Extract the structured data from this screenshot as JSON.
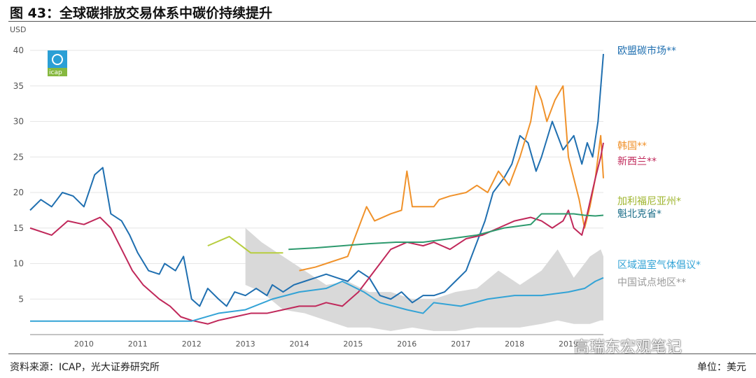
{
  "figure": {
    "title": "图 43：全球碳排放交易体系中碳价持续提升",
    "source": "资料来源：ICAP，光大证券研究所",
    "unit": "单位：美元",
    "watermark": "高瑞东宏观笔记",
    "logo_text": "icap"
  },
  "chart_data": {
    "type": "line",
    "ylabel": "USD",
    "ylim": [
      0,
      40
    ],
    "yticks": [
      5,
      10,
      15,
      20,
      25,
      30,
      35,
      40
    ],
    "xlim": [
      2009.5,
      2020.15
    ],
    "xticks": [
      2010,
      2011,
      2012,
      2013,
      2014,
      2015,
      2016,
      2017,
      2018,
      2019
    ],
    "grid": true,
    "legend": "right, inline labels",
    "series": [
      {
        "name": "欧盟碳市场**",
        "color": "#1f6fb0",
        "x": [
          2009.5,
          2009.7,
          2009.9,
          2010.1,
          2010.3,
          2010.5,
          2010.7,
          2010.85,
          2011.0,
          2011.2,
          2011.35,
          2011.5,
          2011.7,
          2011.9,
          2012.0,
          2012.2,
          2012.35,
          2012.5,
          2012.65,
          2012.8,
          2013.0,
          2013.15,
          2013.3,
          2013.5,
          2013.7,
          2013.9,
          2014.0,
          2014.2,
          2014.4,
          2014.6,
          2014.8,
          2015.0,
          2015.2,
          2015.4,
          2015.6,
          2015.8,
          2016.0,
          2016.2,
          2016.4,
          2016.6,
          2016.8,
          2017.0,
          2017.2,
          2017.4,
          2017.6,
          2017.8,
          2017.95,
          2018.1,
          2018.3,
          2018.45,
          2018.6,
          2018.75,
          2018.9,
          2019.0,
          2019.2,
          2019.4,
          2019.6,
          2019.75,
          2019.85,
          2019.95,
          2020.05,
          2020.15
        ],
        "values": [
          17.5,
          19.0,
          18.0,
          20.0,
          19.5,
          18.0,
          22.5,
          23.5,
          17.0,
          16.0,
          14.0,
          11.5,
          9.0,
          8.5,
          10.0,
          9.0,
          11.0,
          5.0,
          4.0,
          6.5,
          5.0,
          4.0,
          6.0,
          5.5,
          6.5,
          5.5,
          7.0,
          6.0,
          7.0,
          7.5,
          8.0,
          8.5,
          8.0,
          7.5,
          9.0,
          8.0,
          5.5,
          5.0,
          6.0,
          4.5,
          5.5,
          5.5,
          6.0,
          7.5,
          9.0,
          13.0,
          16.0,
          20.0,
          22.0,
          24.0,
          28.0,
          27.0,
          23.0,
          25.0,
          30.0,
          26.0,
          28.0,
          24.0,
          27.0,
          25.0,
          30.0,
          39.5
        ]
      },
      {
        "name": "韩国**",
        "color": "#f0922b",
        "x": [
          2014.5,
          2014.8,
          2015.0,
          2015.4,
          2015.6,
          2015.75,
          2015.9,
          2016.2,
          2016.4,
          2016.5,
          2016.6,
          2016.8,
          2017.0,
          2017.1,
          2017.3,
          2017.6,
          2017.8,
          2018.0,
          2018.2,
          2018.4,
          2018.6,
          2018.8,
          2018.9,
          2019.0,
          2019.1,
          2019.25,
          2019.4,
          2019.5,
          2019.6,
          2019.7,
          2019.8,
          2019.9,
          2020.0,
          2020.1,
          2020.15
        ],
        "values": [
          9.0,
          9.5,
          10.0,
          11.0,
          15.0,
          18.0,
          16.0,
          17.0,
          17.5,
          23.0,
          18.0,
          18.0,
          18.0,
          19.0,
          19.5,
          20.0,
          21.0,
          20.0,
          23.0,
          21.0,
          25.0,
          30.0,
          35.0,
          33.0,
          30.0,
          33.0,
          35.0,
          25.0,
          22.0,
          19.0,
          15.0,
          18.0,
          22.0,
          28.0,
          22.0
        ]
      },
      {
        "name": "新西兰**",
        "color": "#c0285a",
        "x": [
          2009.5,
          2009.9,
          2010.2,
          2010.5,
          2010.8,
          2011.0,
          2011.2,
          2011.4,
          2011.6,
          2011.9,
          2012.1,
          2012.3,
          2012.5,
          2012.8,
          2013.0,
          2013.3,
          2013.6,
          2013.9,
          2014.2,
          2014.5,
          2014.8,
          2015.0,
          2015.3,
          2015.6,
          2015.9,
          2016.2,
          2016.5,
          2016.8,
          2017.0,
          2017.3,
          2017.6,
          2017.9,
          2018.2,
          2018.5,
          2018.8,
          2019.0,
          2019.2,
          2019.4,
          2019.5,
          2019.6,
          2019.75,
          2019.85,
          2020.0,
          2020.1,
          2020.15
        ],
        "values": [
          15.0,
          14.0,
          16.0,
          15.5,
          16.5,
          15.0,
          12.0,
          9.0,
          7.0,
          5.0,
          4.0,
          2.5,
          2.0,
          1.5,
          2.0,
          2.5,
          3.0,
          3.0,
          3.5,
          4.0,
          4.0,
          4.5,
          4.0,
          6.0,
          9.0,
          12.0,
          13.0,
          12.5,
          13.0,
          12.0,
          13.5,
          14.0,
          15.0,
          16.0,
          16.5,
          16.0,
          15.0,
          16.0,
          17.5,
          15.0,
          14.0,
          17.0,
          22.0,
          25.0,
          27.0
        ]
      },
      {
        "name": "加利福尼亚州*",
        "color": "#b7cd3f",
        "x": [
          2012.8,
          2013.2,
          2013.6,
          2014.0,
          2014.2
        ],
        "values": [
          12.5,
          13.8,
          11.5,
          11.5,
          11.5
        ]
      },
      {
        "name": "魁北克省*",
        "color": "#2e9a6e",
        "x": [
          2014.3,
          2014.8,
          2015.3,
          2015.8,
          2016.3,
          2016.8,
          2017.3,
          2017.8,
          2018.3,
          2018.8,
          2019.0,
          2019.2,
          2019.4,
          2019.6,
          2019.8,
          2020.0,
          2020.15
        ],
        "values": [
          12.0,
          12.2,
          12.5,
          12.8,
          13.0,
          13.0,
          13.5,
          14.0,
          15.0,
          15.5,
          17.0,
          17.0,
          17.0,
          17.0,
          16.8,
          16.7,
          16.8
        ]
      },
      {
        "name": "区域温室气体倡议*",
        "color": "#33a3d6",
        "x": [
          2009.5,
          2010.0,
          2011.0,
          2012.0,
          2012.5,
          2013.0,
          2013.5,
          2014.0,
          2014.5,
          2015.0,
          2015.3,
          2015.7,
          2016.0,
          2016.5,
          2016.8,
          2017.0,
          2017.5,
          2018.0,
          2018.5,
          2019.0,
          2019.5,
          2019.8,
          2020.0,
          2020.15
        ],
        "values": [
          1.9,
          1.9,
          1.9,
          1.9,
          1.9,
          3.0,
          3.5,
          5.0,
          6.0,
          6.5,
          7.5,
          6.0,
          4.5,
          3.5,
          3.0,
          4.5,
          4.0,
          5.0,
          5.5,
          5.5,
          6.0,
          6.5,
          7.5,
          8.0
        ]
      }
    ],
    "band": {
      "name": "中国试点地区**",
      "color": "#d9d9d9",
      "x": [
        2013.5,
        2013.8,
        2014.2,
        2014.6,
        2015.0,
        2015.4,
        2015.8,
        2016.2,
        2016.6,
        2017.0,
        2017.4,
        2017.8,
        2018.2,
        2018.6,
        2019.0,
        2019.3,
        2019.6,
        2019.9,
        2020.1,
        2020.15
      ],
      "upper": [
        15.0,
        13.0,
        11.0,
        9.0,
        7.0,
        7.5,
        6.0,
        6.0,
        5.0,
        5.0,
        6.0,
        6.5,
        9.0,
        7.0,
        9.0,
        12.0,
        8.0,
        11.0,
        12.0,
        11.0
      ],
      "lower": [
        7.0,
        6.0,
        3.5,
        3.0,
        2.0,
        1.0,
        1.0,
        0.5,
        1.0,
        0.5,
        0.5,
        1.0,
        1.0,
        1.0,
        1.5,
        2.0,
        1.5,
        1.5,
        2.0,
        2.0
      ]
    }
  }
}
